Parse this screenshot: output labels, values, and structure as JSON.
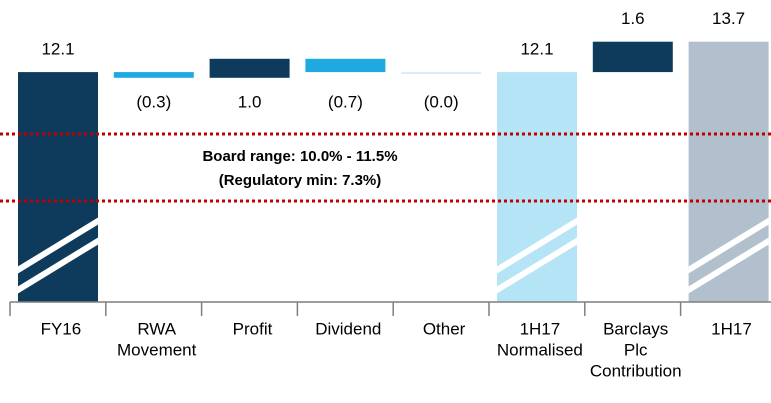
{
  "chart_data": {
    "type": "waterfall",
    "categories": [
      [
        "FY16"
      ],
      [
        "RWA",
        "Movement"
      ],
      [
        "Profit"
      ],
      [
        "Dividend"
      ],
      [
        "Other"
      ],
      [
        "1H17",
        "Normalised"
      ],
      [
        "Barclays",
        "Plc",
        "Contribution"
      ],
      [
        "1H17"
      ]
    ],
    "values": [
      12.1,
      -0.3,
      1.0,
      -0.7,
      -0.0,
      12.1,
      1.6,
      13.7
    ],
    "value_labels": [
      "12.1",
      "(0.3)",
      "1.0",
      "(0.7)",
      "(0.0)",
      "12.1",
      "1.6",
      "13.7"
    ],
    "totals": [
      true,
      false,
      false,
      false,
      false,
      true,
      false,
      true
    ],
    "colors": [
      "#0e3a5c",
      "#1ea9e1",
      "#0e3a5c",
      "#1ea9e1",
      "#d4edf8",
      "#b4e4f6",
      "#0e3a5c",
      "#b1c0cc"
    ],
    "ylim": [
      0,
      14.5
    ],
    "annotations": [
      "Board range: 10.0% - 11.5%",
      "(Regulatory min: 7.3%)"
    ]
  }
}
